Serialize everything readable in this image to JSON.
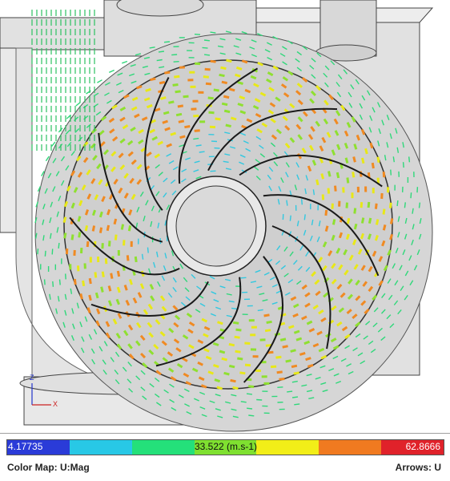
{
  "legend": {
    "min_label": "4.17735",
    "mid_label": "33.522 (m.s-1)",
    "max_label": "62.8666",
    "colors": [
      "#2a3bd8",
      "#28c8e6",
      "#24e07a",
      "#7fe030",
      "#f2ee18",
      "#f07a20",
      "#e0222a"
    ]
  },
  "footer": {
    "color_map_label": "Color Map: U:Mag",
    "arrows_label": "Arrows: U"
  },
  "axes": {
    "z_label": "Z",
    "x_label": "X"
  },
  "scene": {
    "background": "#ffffff",
    "housing_color": "#e3e3e3",
    "blade_color": "#1a1a1a"
  }
}
